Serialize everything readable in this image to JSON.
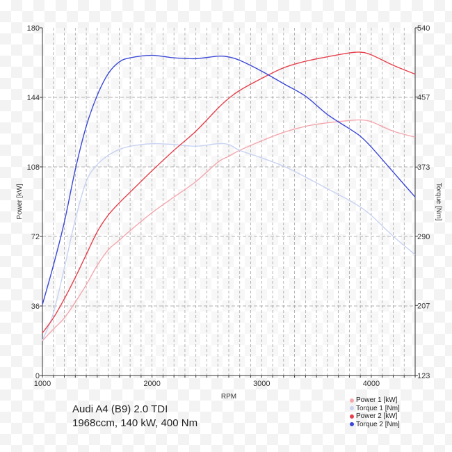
{
  "chart_data": {
    "type": "line",
    "xlabel": "RPM",
    "ylabel": "Power [kW]",
    "y2label": "Torque [Nm]",
    "xlim": [
      1000,
      4400
    ],
    "ylim": [
      0,
      180
    ],
    "y2lim": [
      123,
      540
    ],
    "xticks": [
      1000,
      2000,
      3000,
      4000
    ],
    "yticks": [
      0,
      36,
      72,
      108,
      144,
      180
    ],
    "y2ticks": [
      123,
      207,
      290,
      373,
      457,
      540
    ],
    "grid": true,
    "legend_position": "bottom-right",
    "x": [
      1000,
      1100,
      1200,
      1300,
      1400,
      1500,
      1600,
      1700,
      1800,
      2000,
      2200,
      2400,
      2600,
      2700,
      2800,
      3000,
      3200,
      3400,
      3600,
      3800,
      3900,
      4000,
      4200,
      4400
    ],
    "series": [
      {
        "name": "Power 1 [kW]",
        "axis": "left",
        "color": "#f4a6ae",
        "values": [
          18,
          24,
          29.8,
          38,
          47,
          57,
          65,
          70,
          75,
          84.3,
          92.4,
          100.4,
          110.4,
          113.5,
          116.6,
          121.5,
          125.9,
          129,
          130.8,
          132,
          132.3,
          131.4,
          126.5,
          123.4
        ]
      },
      {
        "name": "Torque 1 [Nm]",
        "axis": "right",
        "color": "#c8d2f2",
        "values": [
          165,
          198,
          252,
          310,
          356,
          376,
          387,
          394,
          398,
          401,
          400,
          398,
          401,
          400,
          393,
          384,
          374,
          361,
          347,
          333,
          325,
          315,
          290,
          268
        ]
      },
      {
        "name": "Power 2 [kW]",
        "axis": "left",
        "color": "#e5404c",
        "values": [
          22,
          29.8,
          39.7,
          50.8,
          62.6,
          74.4,
          83,
          89.3,
          94.9,
          106,
          116.6,
          126.5,
          138.3,
          143.5,
          147.6,
          153.8,
          159.3,
          162.7,
          165,
          167,
          167.4,
          166,
          160.6,
          156
        ]
      },
      {
        "name": "Torque 2 [Nm]",
        "axis": "right",
        "color": "#3a47d6",
        "values": [
          208,
          255,
          307,
          370,
          422,
          459,
          485,
          499,
          504,
          507,
          504,
          503,
          506,
          505,
          501,
          488,
          473,
          458,
          436,
          419,
          410,
          397,
          367,
          337
        ]
      }
    ]
  },
  "caption": {
    "line1": "Audi A4 (B9) 2.0 TDI",
    "line2": "1968ccm, 140 kW, 400 Nm"
  }
}
